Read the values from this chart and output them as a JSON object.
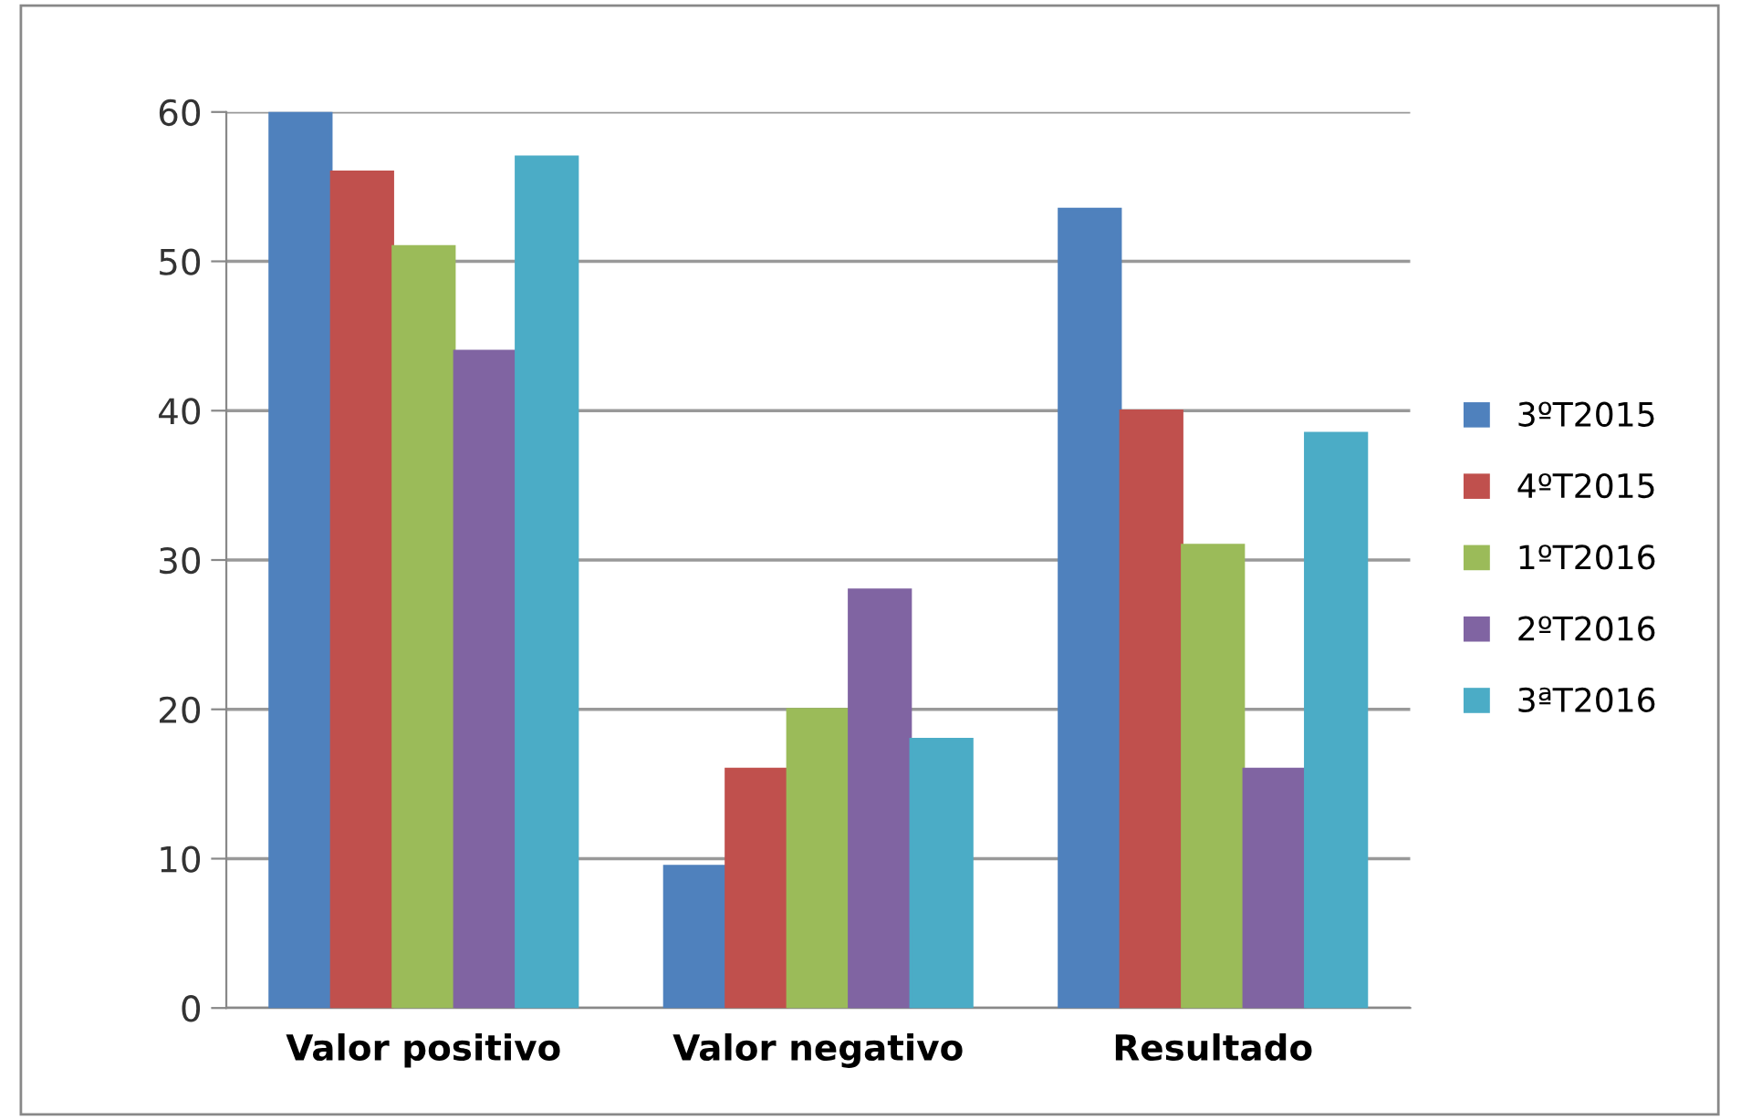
{
  "chart_data": {
    "type": "bar",
    "categories": [
      "Valor positivo",
      "Valor negativo",
      "Resultado"
    ],
    "series": [
      {
        "name": "3ºT2015",
        "color": "#4f81bd",
        "values": [
          60,
          9.5,
          53.5
        ]
      },
      {
        "name": "4ºT2015",
        "color": "#c0504d",
        "values": [
          56,
          16,
          40
        ]
      },
      {
        "name": "1ºT2016",
        "color": "#9bbb59",
        "values": [
          51,
          20,
          31
        ]
      },
      {
        "name": "2ºT2016",
        "color": "#8064a2",
        "values": [
          44,
          28,
          16
        ]
      },
      {
        "name": "3ªT2016",
        "color": "#4bacc6",
        "values": [
          57,
          18,
          38.5
        ]
      }
    ],
    "ylim": [
      0,
      60
    ],
    "yticks": [
      0,
      10,
      20,
      30,
      40,
      50,
      60
    ],
    "grid": "y",
    "legend": "right"
  }
}
